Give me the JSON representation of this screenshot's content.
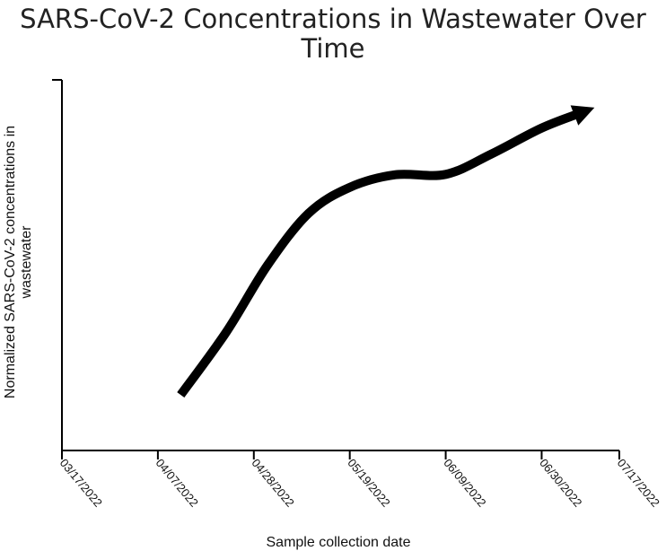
{
  "chart_data": {
    "type": "line",
    "title": "SARS-CoV-2 Concentrations in Wastewater Over Time",
    "xlabel": "Sample collection date",
    "ylabel": "Normalized SARS-CoV-2 concentrations in wastewater",
    "x_ticks": [
      "03/17/2022",
      "04/07/2022",
      "04/28/2022",
      "05/19/2022",
      "06/09/2022",
      "06/30/2022",
      "07/17/2022"
    ],
    "y_ticks": [],
    "grid": false,
    "legend": "none",
    "series": [
      {
        "line_color": "#000000",
        "arrow_at_end": true,
        "points": [
          {
            "x": "04/12/2022",
            "y": 0.15
          },
          {
            "x": "04/22/2022",
            "y": 0.32
          },
          {
            "x": "05/01/2022",
            "y": 0.5
          },
          {
            "x": "05/10/2022",
            "y": 0.64
          },
          {
            "x": "05/19/2022",
            "y": 0.71
          },
          {
            "x": "05/29/2022",
            "y": 0.744
          },
          {
            "x": "06/09/2022",
            "y": 0.745
          },
          {
            "x": "06/19/2022",
            "y": 0.8
          },
          {
            "x": "06/30/2022",
            "y": 0.87
          },
          {
            "x": "07/09/2022",
            "y": 0.913
          }
        ]
      }
    ]
  }
}
